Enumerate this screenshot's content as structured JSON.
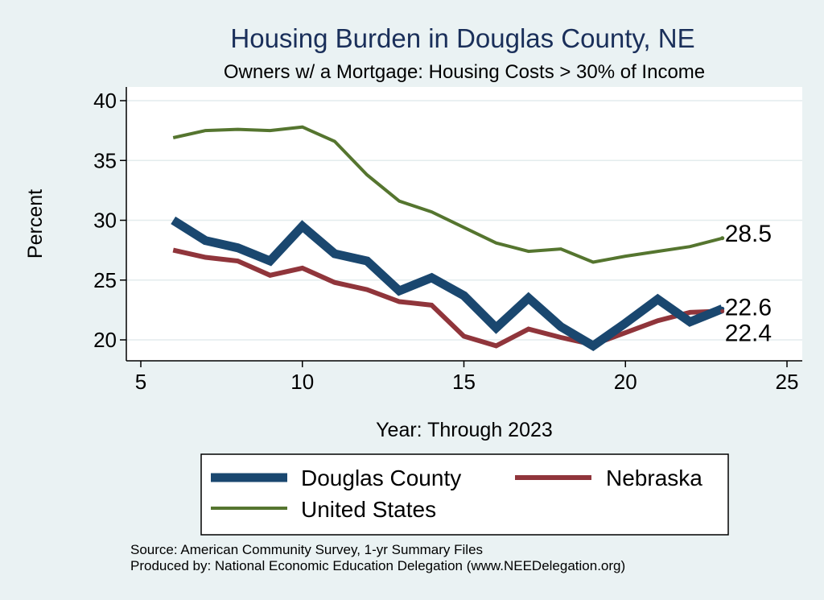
{
  "chart_data": {
    "type": "line",
    "title": "Housing Burden in Douglas County, NE",
    "subtitle": "Owners w/ a Mortgage: Housing Costs > 30% of Income",
    "xlabel": "Year: Through 2023",
    "ylabel": "Percent",
    "xlim": [
      5,
      25
    ],
    "ylim": [
      18.5,
      41
    ],
    "xticks": [
      "5",
      "10",
      "15",
      "20",
      "25"
    ],
    "yticks": [
      "20",
      "25",
      "30",
      "35",
      "40"
    ],
    "grid": true,
    "series": [
      {
        "name": "Douglas County",
        "color": "#1a476f",
        "x": [
          6,
          7,
          8,
          9,
          10,
          11,
          12,
          13,
          14,
          15,
          16,
          17,
          18,
          19,
          20,
          21,
          22,
          23
        ],
        "values": [
          30.0,
          28.3,
          27.7,
          26.6,
          29.5,
          27.2,
          26.6,
          24.1,
          25.2,
          23.7,
          21.0,
          23.5,
          21.1,
          19.5,
          21.4,
          23.4,
          21.5,
          22.6
        ],
        "end_label": "22.6"
      },
      {
        "name": "Nebraska",
        "color": "#90353b",
        "x": [
          6,
          7,
          8,
          9,
          10,
          11,
          12,
          13,
          14,
          15,
          16,
          17,
          18,
          19,
          20,
          21,
          22,
          23
        ],
        "values": [
          27.5,
          26.9,
          26.6,
          25.4,
          26.0,
          24.8,
          24.2,
          23.2,
          22.9,
          20.3,
          19.5,
          20.9,
          20.2,
          19.6,
          20.6,
          21.6,
          22.3,
          22.4
        ],
        "end_label": "22.4"
      },
      {
        "name": "United States",
        "color": "#55752f",
        "x": [
          6,
          7,
          8,
          9,
          10,
          11,
          12,
          13,
          14,
          15,
          16,
          17,
          18,
          19,
          20,
          21,
          22,
          23
        ],
        "values": [
          36.9,
          37.5,
          37.6,
          37.5,
          37.8,
          36.6,
          33.8,
          31.6,
          30.7,
          29.4,
          28.1,
          27.4,
          27.6,
          26.5,
          27.0,
          27.4,
          27.8,
          28.5
        ],
        "end_label": "28.5"
      }
    ],
    "legend": {
      "placement": "bottom",
      "entries": [
        "Douglas County",
        "Nebraska",
        "United States"
      ]
    },
    "source_lines": [
      "Source: American Community Survey, 1-yr Summary Files",
      "Produced by: National Economic Education Delegation (www.NEEDelegation.org)"
    ]
  }
}
